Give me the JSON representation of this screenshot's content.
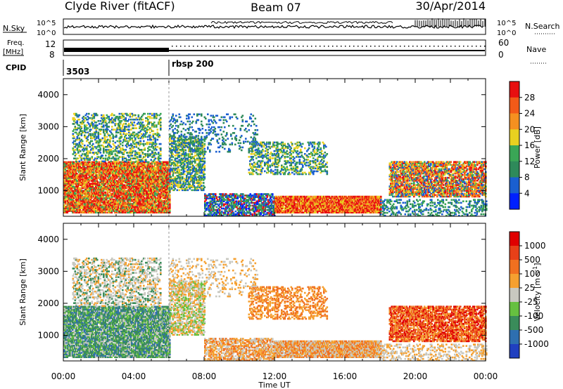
{
  "header": {
    "station": "Clyde River (fitACF)",
    "beam": "Beam 07",
    "date": "30/Apr/2014"
  },
  "top_strips": {
    "nsky_label": "N.Sky",
    "nsky_ticks": [
      "10^5",
      "10^0"
    ],
    "nsearch_label": "N.Search",
    "nsearch_ticks": [
      "10^5",
      "10^0"
    ],
    "freq_label": "Freq.",
    "freq_unit": "[MHz]",
    "freq_ticks": [
      "12",
      "8"
    ],
    "nave_label": "Nave",
    "nave_ticks": [
      "60",
      "0"
    ],
    "cpid_label": "CPID",
    "cpid_modes": [
      {
        "name": "3503",
        "start_hour": 0
      },
      {
        "name": "rbsp 200",
        "start_hour": 6
      }
    ]
  },
  "chart_data": [
    {
      "type": "heatmap",
      "name": "power-panel",
      "ylabel": "Slant Range [km]",
      "xlabel": "",
      "xlim": [
        0,
        24
      ],
      "ylim": [
        200,
        4500
      ],
      "y_ticks": [
        1000,
        2000,
        3000,
        4000
      ],
      "x_tick_labels": [
        "00:00",
        "04:00",
        "08:00",
        "12:00",
        "16:00",
        "20:00",
        "00:00"
      ],
      "colorbar": {
        "label": "Power [dB]",
        "ticks": [
          "4",
          "8",
          "12",
          "16",
          "20",
          "24",
          "28"
        ],
        "colors": [
          "#0020ff",
          "#1a5fd0",
          "#2e8a5a",
          "#3aa656",
          "#e8d020",
          "#f59020",
          "#f25a18",
          "#e81010"
        ]
      }
    },
    {
      "type": "heatmap",
      "name": "velocity-panel",
      "ylabel": "Slant Range [km]",
      "xlabel": "Time UT",
      "xlim": [
        0,
        24
      ],
      "ylim": [
        200,
        4500
      ],
      "y_ticks": [
        1000,
        2000,
        3000,
        4000
      ],
      "x_tick_labels": [
        "00:00",
        "04:00",
        "08:00",
        "12:00",
        "16:00",
        "20:00",
        "00:00"
      ],
      "colorbar": {
        "label": "Velocity [m s",
        "label_sup": "-1",
        "label_end": "]",
        "ticks": [
          "1000",
          "500",
          "100",
          "25",
          "-25",
          "-100",
          "-500",
          "-1000"
        ],
        "colors": [
          "#2040c0",
          "#2e6fb0",
          "#3a8c5a",
          "#66c040",
          "#c8c8c0",
          "#f5a030",
          "#f07020",
          "#e84018",
          "#e00000"
        ]
      }
    }
  ]
}
